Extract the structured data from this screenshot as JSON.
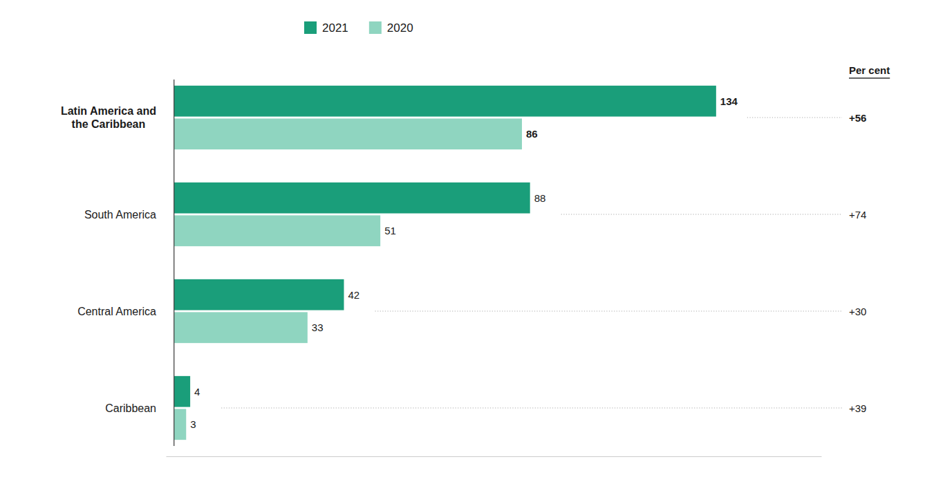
{
  "chart_data": {
    "type": "bar",
    "orientation": "horizontal",
    "categories": [
      "Latin America and\nthe Caribbean",
      "South America",
      "Central America",
      "Caribbean"
    ],
    "series": [
      {
        "name": "2021",
        "color": "#1a9e7a",
        "values": [
          134,
          88,
          42,
          4
        ]
      },
      {
        "name": "2020",
        "color": "#8fd5c0",
        "values": [
          86,
          51,
          33,
          3
        ]
      }
    ],
    "change_label": "Per cent",
    "change_labels": [
      "+56",
      "+74",
      "+30",
      "+39"
    ],
    "xlim": [
      -2,
      160
    ],
    "data_labels": true,
    "tick_labels": false,
    "grid": false,
    "legend": "top"
  }
}
